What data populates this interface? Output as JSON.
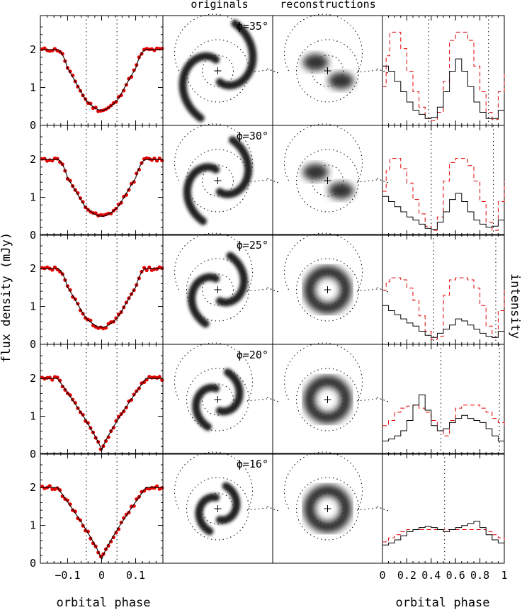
{
  "labels": {
    "col_originals": "originals",
    "col_reconstructions": "reconstructions",
    "ylabel_left": "flux density (mJy)",
    "ylabel_right": "intensity",
    "xlabel_left": "orbital phase",
    "xlabel_right": "orbital phase"
  },
  "colors": {
    "data_points": "#e00000",
    "dashed_line": "#e00000",
    "model_line": "#000000"
  },
  "chart_data": [
    {
      "type": "scatter",
      "panel": "light curves",
      "xlabel": "orbital phase",
      "ylabel": "flux density (mJy)",
      "xlim": [
        -0.18,
        0.18
      ],
      "ylim": [
        0,
        2.9
      ],
      "xticks": [
        "−0.1",
        "0",
        "0.1"
      ],
      "yticks": [
        "0",
        "1",
        "2"
      ],
      "vertical_dotted_lines_x": [
        -0.045,
        0.045
      ],
      "rows": [
        {
          "phi": "ϕ=35°",
          "min_flux": 0.4,
          "out_of_eclipse": 2.0
        },
        {
          "phi": "ϕ=30°",
          "min_flux": 0.5,
          "out_of_eclipse": 2.0
        },
        {
          "phi": "ϕ=25°",
          "min_flux": 0.45,
          "out_of_eclipse": 2.0
        },
        {
          "phi": "ϕ=20°",
          "min_flux": 0.1,
          "out_of_eclipse": 2.0
        },
        {
          "phi": "ϕ=16°",
          "min_flux": 0.1,
          "out_of_eclipse": 2.0
        }
      ]
    },
    {
      "type": "heatmap",
      "panel": "originals",
      "rows": [
        "ϕ=35°",
        "ϕ=30°",
        "ϕ=25°",
        "ϕ=20°",
        "ϕ=16°"
      ]
    },
    {
      "type": "heatmap",
      "panel": "reconstructions",
      "rows": [
        "ϕ=35°",
        "ϕ=30°",
        "ϕ=25°",
        "ϕ=20°",
        "ϕ=16°"
      ]
    },
    {
      "type": "line",
      "panel": "intensity",
      "xlabel": "orbital phase",
      "ylabel": "intensity",
      "xlim": [
        0,
        1
      ],
      "xticks": [
        "0",
        "0.2",
        "0.4",
        "0.6",
        "0.8",
        "1"
      ],
      "rows": [
        {
          "dotted_x": [
            0.38,
            0.87
          ],
          "solid": [
            [
              0,
              0.55
            ],
            [
              0.05,
              0.5
            ],
            [
              0.1,
              0.4
            ],
            [
              0.15,
              0.3
            ],
            [
              0.2,
              0.2
            ],
            [
              0.25,
              0.12
            ],
            [
              0.3,
              0.08
            ],
            [
              0.35,
              0.04
            ],
            [
              0.4,
              0.05
            ],
            [
              0.45,
              0.15
            ],
            [
              0.5,
              0.3
            ],
            [
              0.55,
              0.5
            ],
            [
              0.6,
              0.62
            ],
            [
              0.65,
              0.5
            ],
            [
              0.7,
              0.35
            ],
            [
              0.75,
              0.2
            ],
            [
              0.8,
              0.1
            ],
            [
              0.85,
              0.04
            ],
            [
              0.9,
              0.04
            ],
            [
              0.95,
              0.12
            ],
            [
              1.0,
              0.3
            ]
          ],
          "dashed": [
            [
              0,
              0.35
            ],
            [
              0.03,
              0.65
            ],
            [
              0.06,
              0.88
            ],
            [
              0.1,
              0.88
            ],
            [
              0.15,
              0.72
            ],
            [
              0.2,
              0.5
            ],
            [
              0.25,
              0.3
            ],
            [
              0.3,
              0.15
            ],
            [
              0.35,
              0.04
            ],
            [
              0.4,
              0.02
            ],
            [
              0.45,
              0.1
            ],
            [
              0.5,
              0.4
            ],
            [
              0.55,
              0.8
            ],
            [
              0.6,
              0.88
            ],
            [
              0.65,
              0.88
            ],
            [
              0.7,
              0.8
            ],
            [
              0.75,
              0.55
            ],
            [
              0.8,
              0.3
            ],
            [
              0.85,
              0.1
            ],
            [
              0.9,
              0.03
            ],
            [
              0.95,
              0.3
            ],
            [
              1.0,
              0.5
            ]
          ]
        },
        {
          "dotted_x": [
            0.4,
            0.91
          ],
          "solid": [
            [
              0,
              0.35
            ],
            [
              0.05,
              0.3
            ],
            [
              0.1,
              0.25
            ],
            [
              0.15,
              0.2
            ],
            [
              0.2,
              0.15
            ],
            [
              0.25,
              0.12
            ],
            [
              0.3,
              0.08
            ],
            [
              0.35,
              0.04
            ],
            [
              0.4,
              0.03
            ],
            [
              0.45,
              0.1
            ],
            [
              0.5,
              0.2
            ],
            [
              0.55,
              0.32
            ],
            [
              0.6,
              0.38
            ],
            [
              0.65,
              0.3
            ],
            [
              0.7,
              0.2
            ],
            [
              0.75,
              0.12
            ],
            [
              0.8,
              0.08
            ],
            [
              0.85,
              0.05
            ],
            [
              0.9,
              0.06
            ],
            [
              0.95,
              0.12
            ],
            [
              1.0,
              0.22
            ]
          ],
          "dashed": [
            [
              0,
              0.4
            ],
            [
              0.03,
              0.6
            ],
            [
              0.06,
              0.72
            ],
            [
              0.1,
              0.72
            ],
            [
              0.15,
              0.62
            ],
            [
              0.2,
              0.48
            ],
            [
              0.25,
              0.32
            ],
            [
              0.3,
              0.18
            ],
            [
              0.35,
              0.06
            ],
            [
              0.4,
              0.02
            ],
            [
              0.45,
              0.15
            ],
            [
              0.5,
              0.5
            ],
            [
              0.55,
              0.68
            ],
            [
              0.6,
              0.72
            ],
            [
              0.65,
              0.72
            ],
            [
              0.7,
              0.65
            ],
            [
              0.75,
              0.5
            ],
            [
              0.8,
              0.3
            ],
            [
              0.85,
              0.1
            ],
            [
              0.9,
              0.02
            ],
            [
              0.95,
              0.3
            ],
            [
              1.0,
              0.5
            ]
          ]
        },
        {
          "dotted_x": [
            0.42,
            0.93
          ],
          "solid": [
            [
              0,
              0.35
            ],
            [
              0.05,
              0.3
            ],
            [
              0.1,
              0.26
            ],
            [
              0.15,
              0.22
            ],
            [
              0.2,
              0.18
            ],
            [
              0.25,
              0.15
            ],
            [
              0.3,
              0.1
            ],
            [
              0.35,
              0.06
            ],
            [
              0.4,
              0.04
            ],
            [
              0.45,
              0.08
            ],
            [
              0.5,
              0.12
            ],
            [
              0.55,
              0.16
            ],
            [
              0.6,
              0.22
            ],
            [
              0.65,
              0.2
            ],
            [
              0.7,
              0.16
            ],
            [
              0.75,
              0.12
            ],
            [
              0.8,
              0.08
            ],
            [
              0.85,
              0.05
            ],
            [
              0.9,
              0.04
            ],
            [
              0.95,
              0.1
            ],
            [
              1.0,
              0.2
            ]
          ],
          "dashed": [
            [
              0,
              0.5
            ],
            [
              0.03,
              0.58
            ],
            [
              0.06,
              0.62
            ],
            [
              0.1,
              0.62
            ],
            [
              0.15,
              0.6
            ],
            [
              0.2,
              0.52
            ],
            [
              0.25,
              0.4
            ],
            [
              0.3,
              0.25
            ],
            [
              0.35,
              0.1
            ],
            [
              0.4,
              0.02
            ],
            [
              0.45,
              0.05
            ],
            [
              0.5,
              0.45
            ],
            [
              0.55,
              0.6
            ],
            [
              0.6,
              0.62
            ],
            [
              0.65,
              0.62
            ],
            [
              0.7,
              0.6
            ],
            [
              0.75,
              0.52
            ],
            [
              0.8,
              0.35
            ],
            [
              0.85,
              0.15
            ],
            [
              0.9,
              0.04
            ],
            [
              0.95,
              0.3
            ],
            [
              1.0,
              0.5
            ]
          ]
        },
        {
          "dotted_x": [
            0.48,
            0.96
          ],
          "solid": [
            [
              0,
              0.1
            ],
            [
              0.05,
              0.12
            ],
            [
              0.1,
              0.15
            ],
            [
              0.15,
              0.2
            ],
            [
              0.2,
              0.3
            ],
            [
              0.25,
              0.45
            ],
            [
              0.3,
              0.55
            ],
            [
              0.35,
              0.4
            ],
            [
              0.4,
              0.25
            ],
            [
              0.45,
              0.2
            ],
            [
              0.5,
              0.22
            ],
            [
              0.55,
              0.28
            ],
            [
              0.6,
              0.32
            ],
            [
              0.65,
              0.35
            ],
            [
              0.7,
              0.32
            ],
            [
              0.75,
              0.3
            ],
            [
              0.8,
              0.28
            ],
            [
              0.85,
              0.22
            ],
            [
              0.9,
              0.15
            ],
            [
              0.95,
              0.1
            ],
            [
              1.0,
              0.08
            ]
          ],
          "dashed": [
            [
              0,
              0.25
            ],
            [
              0.05,
              0.3
            ],
            [
              0.1,
              0.38
            ],
            [
              0.15,
              0.42
            ],
            [
              0.2,
              0.44
            ],
            [
              0.25,
              0.45
            ],
            [
              0.3,
              0.42
            ],
            [
              0.35,
              0.38
            ],
            [
              0.4,
              0.3
            ],
            [
              0.45,
              0.2
            ],
            [
              0.5,
              0.15
            ],
            [
              0.55,
              0.3
            ],
            [
              0.6,
              0.42
            ],
            [
              0.65,
              0.45
            ],
            [
              0.7,
              0.45
            ],
            [
              0.75,
              0.45
            ],
            [
              0.8,
              0.42
            ],
            [
              0.85,
              0.38
            ],
            [
              0.9,
              0.32
            ],
            [
              0.95,
              0.28
            ],
            [
              1.0,
              0.25
            ]
          ]
        },
        {
          "dotted_x": [
            0.51
          ],
          "solid": [
            [
              0,
              0.15
            ],
            [
              0.05,
              0.17
            ],
            [
              0.1,
              0.2
            ],
            [
              0.15,
              0.24
            ],
            [
              0.2,
              0.28
            ],
            [
              0.25,
              0.3
            ],
            [
              0.3,
              0.32
            ],
            [
              0.35,
              0.33
            ],
            [
              0.4,
              0.32
            ],
            [
              0.45,
              0.3
            ],
            [
              0.5,
              0.28
            ],
            [
              0.55,
              0.3
            ],
            [
              0.6,
              0.32
            ],
            [
              0.65,
              0.34
            ],
            [
              0.7,
              0.36
            ],
            [
              0.75,
              0.38
            ],
            [
              0.8,
              0.32
            ],
            [
              0.85,
              0.25
            ],
            [
              0.9,
              0.2
            ],
            [
              0.95,
              0.17
            ],
            [
              1.0,
              0.15
            ]
          ],
          "dashed": [
            [
              0,
              0.18
            ],
            [
              0.05,
              0.22
            ],
            [
              0.1,
              0.25
            ],
            [
              0.15,
              0.28
            ],
            [
              0.2,
              0.3
            ],
            [
              0.25,
              0.3
            ],
            [
              0.3,
              0.3
            ],
            [
              0.35,
              0.3
            ],
            [
              0.4,
              0.3
            ],
            [
              0.45,
              0.3
            ],
            [
              0.5,
              0.3
            ],
            [
              0.55,
              0.3
            ],
            [
              0.6,
              0.3
            ],
            [
              0.65,
              0.3
            ],
            [
              0.7,
              0.3
            ],
            [
              0.75,
              0.3
            ],
            [
              0.8,
              0.3
            ],
            [
              0.85,
              0.28
            ],
            [
              0.9,
              0.25
            ],
            [
              0.95,
              0.22
            ],
            [
              1.0,
              0.2
            ]
          ]
        }
      ]
    }
  ]
}
